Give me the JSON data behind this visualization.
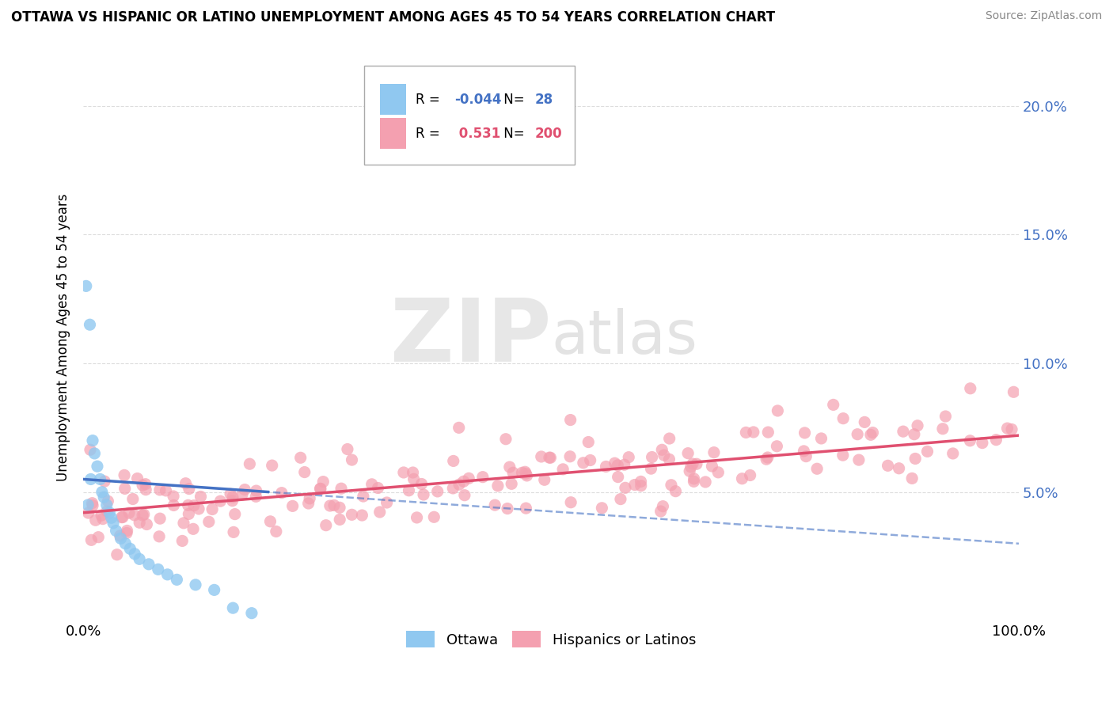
{
  "title": "OTTAWA VS HISPANIC OR LATINO UNEMPLOYMENT AMONG AGES 45 TO 54 YEARS CORRELATION CHART",
  "source": "Source: ZipAtlas.com",
  "ylabel": "Unemployment Among Ages 45 to 54 years",
  "xlim": [
    0,
    100
  ],
  "ylim": [
    0,
    22
  ],
  "ytick_vals": [
    5,
    10,
    15,
    20
  ],
  "ytick_labels": [
    "5.0%",
    "10.0%",
    "15.0%",
    "20.0%"
  ],
  "xtick_vals": [
    0,
    100
  ],
  "xtick_labels": [
    "0.0%",
    "100.0%"
  ],
  "ottawa_color": "#90C8F0",
  "hispanic_color": "#F4A0B0",
  "ottawa_line_color": "#4472C4",
  "hispanic_line_color": "#E05070",
  "ottawa_R": -0.044,
  "ottawa_N": 28,
  "hispanic_R": 0.531,
  "hispanic_N": 200,
  "legend_label_ottawa": "Ottawa",
  "legend_label_hispanic": "Hispanics or Latinos",
  "bg_color": "#FFFFFF",
  "grid_color": "#DDDDDD",
  "right_axis_color": "#4472C4",
  "watermark_zip_color": "#CCCCCC",
  "watermark_atlas_color": "#BBBBBB"
}
